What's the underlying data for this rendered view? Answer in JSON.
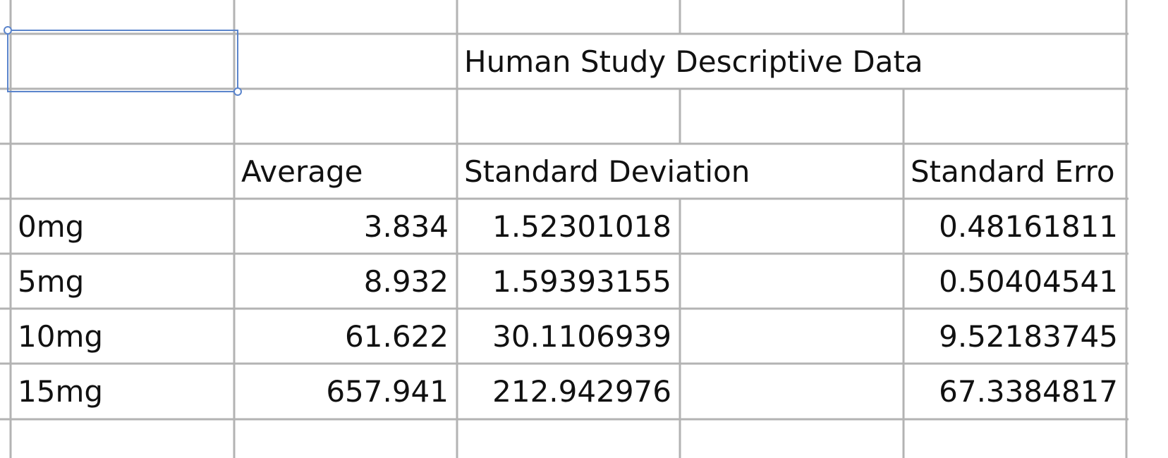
{
  "table": {
    "title": "Human Study Descriptive Data",
    "columns": [
      "Average",
      "Standard Deviation",
      "Standard Erro"
    ],
    "rows": [
      [
        "0mg",
        "3.834",
        "1.52301018",
        "0.48161811"
      ],
      [
        "5mg",
        "8.932",
        "1.59393155",
        "0.50404541"
      ],
      [
        "10mg",
        "61.622",
        "30.1106939",
        "9.52183745"
      ],
      [
        "15mg",
        "657.941",
        "212.942976",
        "67.3384817"
      ]
    ]
  }
}
